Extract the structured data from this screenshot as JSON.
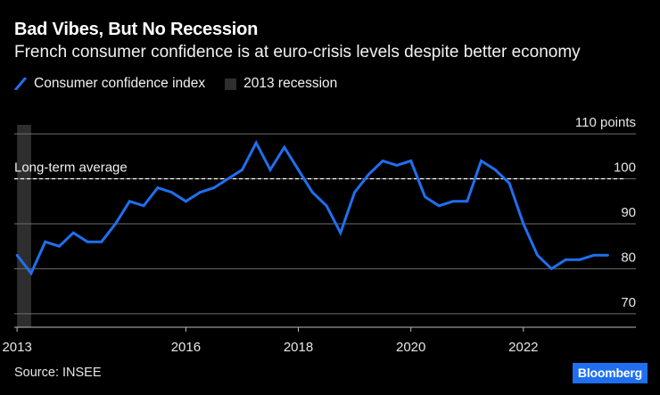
{
  "header": {
    "title": "Bad Vibes, But No Recession",
    "subtitle": "French consumer confidence is at euro-crisis levels despite better economy"
  },
  "legend": {
    "series_label": "Consumer confidence index",
    "recession_label": "2013 recession"
  },
  "footer": {
    "source": "Source: INSEE",
    "brand": "Bloomberg"
  },
  "colors": {
    "line": "#1f6ff0",
    "recession": "#2e2e2e",
    "grid": "#6e6e6e",
    "average": "#ffffff",
    "background": "#000000"
  },
  "chart_data": {
    "type": "line",
    "title": "Bad Vibes, But No Recession",
    "subtitle": "French consumer confidence is at euro-crisis levels despite better economy",
    "xlabel": "",
    "ylabel": "",
    "x_ticks": [
      2013,
      2016,
      2018,
      2020,
      2022
    ],
    "x_tick_labels": [
      "2013",
      "2016",
      "2018",
      "2020",
      "2022"
    ],
    "y_ticks": [
      70,
      80,
      90,
      100,
      110
    ],
    "y_tick_labels": [
      "70",
      "80",
      "90",
      "100",
      "110 points"
    ],
    "ylim": [
      67,
      112
    ],
    "xlim": [
      2012.95,
      2024.0
    ],
    "grid": true,
    "legend_position": "top-left",
    "reference_line": {
      "label": "Long-term average",
      "value": 100,
      "style": "dashed"
    },
    "shaded_region": {
      "label": "2013 recession",
      "x_start": 2013.0,
      "x_end": 2013.25
    },
    "series": [
      {
        "name": "Consumer confidence index",
        "x": [
          2013.0,
          2013.25,
          2013.5,
          2013.75,
          2014.0,
          2014.25,
          2014.5,
          2014.75,
          2015.0,
          2015.25,
          2015.5,
          2015.75,
          2016.0,
          2016.25,
          2016.5,
          2016.75,
          2017.0,
          2017.25,
          2017.5,
          2017.75,
          2018.0,
          2018.25,
          2018.5,
          2018.75,
          2019.0,
          2019.25,
          2019.5,
          2019.75,
          2020.0,
          2020.25,
          2020.5,
          2020.75,
          2021.0,
          2021.25,
          2021.5,
          2021.75,
          2022.0,
          2022.25,
          2022.5,
          2022.75,
          2023.0,
          2023.25,
          2023.5
        ],
        "values": [
          83,
          79,
          86,
          85,
          88,
          86,
          86,
          90,
          95,
          94,
          98,
          97,
          95,
          97,
          98,
          100,
          102,
          108,
          102,
          107,
          102,
          97,
          94,
          88,
          97,
          101,
          104,
          103,
          104,
          96,
          94,
          95,
          95,
          104,
          102,
          99,
          90,
          83,
          80,
          82,
          82,
          83,
          83
        ]
      }
    ]
  }
}
